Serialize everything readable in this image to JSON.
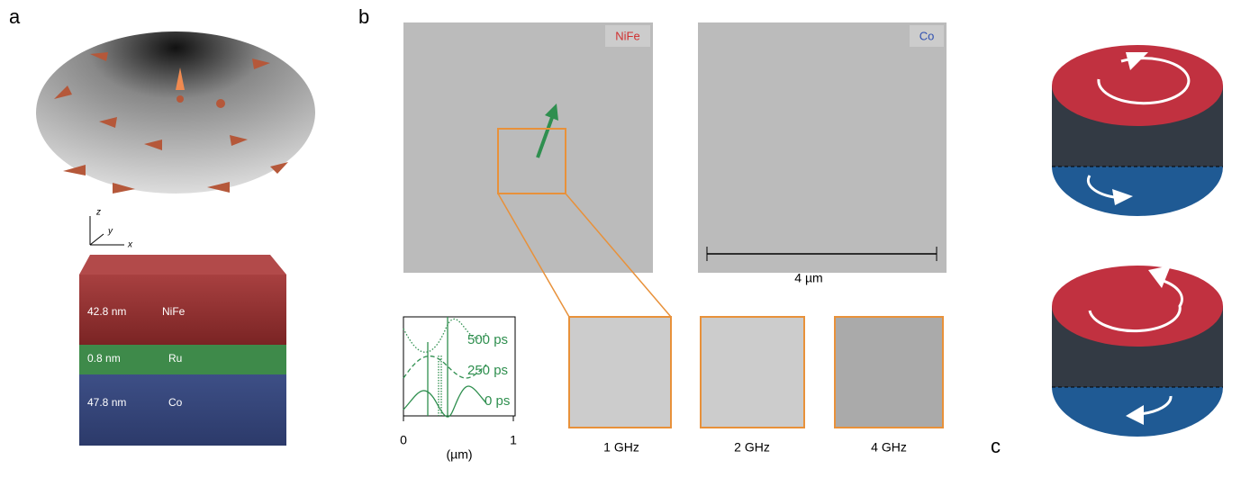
{
  "panels": {
    "a": {
      "label": "a",
      "axes": [
        "z",
        "y",
        "x"
      ],
      "layers": [
        {
          "thickness": "42.8 nm",
          "material": "NiFe"
        },
        {
          "thickness": "0.8 nm",
          "material": "Ru"
        },
        {
          "thickness": "47.8 nm",
          "material": "Co"
        }
      ]
    },
    "b": {
      "label": "b",
      "images": [
        "NiFe",
        "Co"
      ],
      "scale_bar": "4 µm",
      "inset_plot": {
        "curves": [
          "500 ps",
          "250 ps",
          "0 ps"
        ],
        "x_ticks": [
          "0",
          "1"
        ],
        "x_label": "(µm)"
      },
      "zooms": [
        "1 GHz",
        "2 GHz",
        "4 GHz"
      ]
    },
    "c": {
      "label": "c"
    }
  }
}
